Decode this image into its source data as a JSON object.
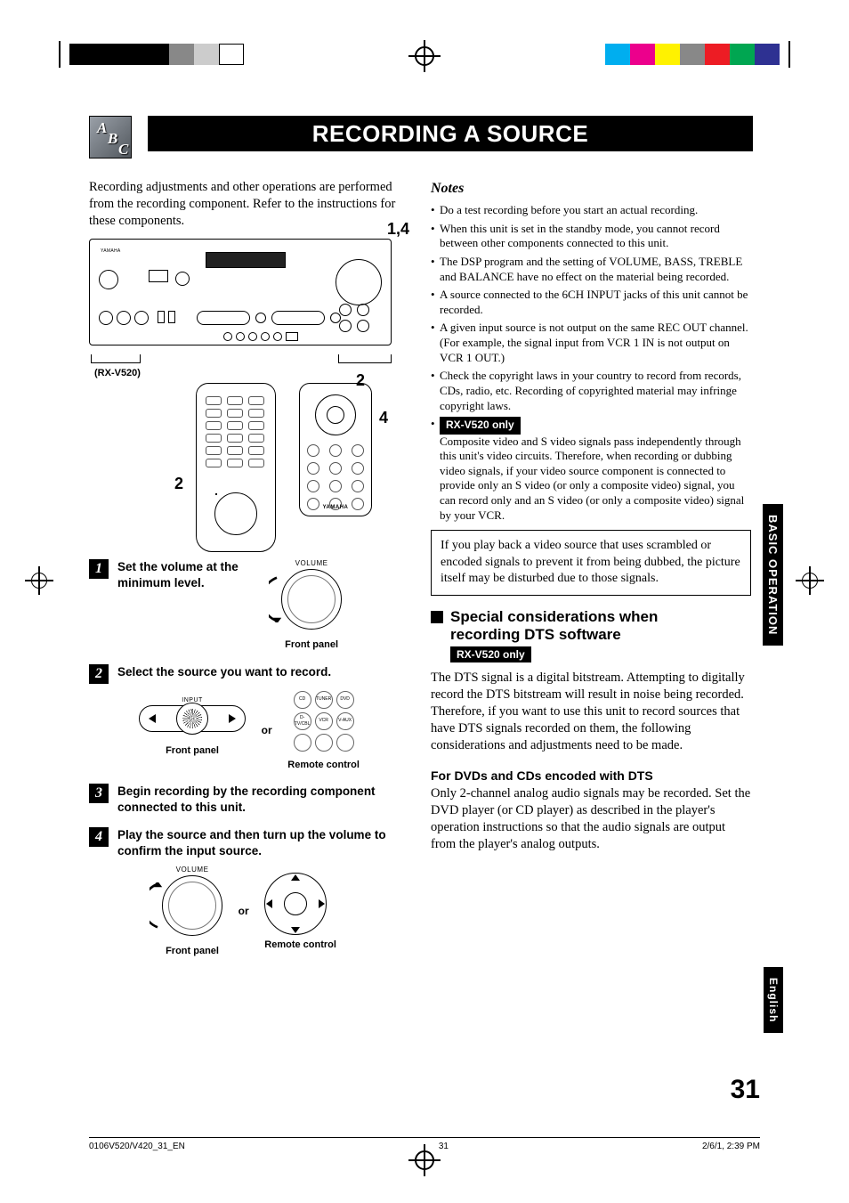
{
  "print_marks": {
    "left_swatches": [
      "#000000",
      "#000000",
      "#000000",
      "#000000",
      "#888888",
      "#cccccc",
      "#ffffff"
    ],
    "right_swatches": [
      "#00aeef",
      "#ec008c",
      "#fff200",
      "#888888",
      "#ed1c24",
      "#00a651",
      "#2e3192"
    ]
  },
  "badge_letters": {
    "a": "A",
    "b": "B",
    "c": "C"
  },
  "title": "RECORDING A SOURCE",
  "intro": "Recording adjustments and other operations are performed from the recording component. Refer to the instructions for these components.",
  "callouts": {
    "top_right": "1,4",
    "mid_right_2": "2",
    "mid_right_4": "4",
    "left_2": "2"
  },
  "model_label": "(RX-V520)",
  "remote_logo": "YAMAHA",
  "steps": {
    "s1": {
      "num": "1",
      "text": "Set the volume at the minimum level."
    },
    "s2": {
      "num": "2",
      "text": "Select the source you want to record."
    },
    "s3": {
      "num": "3",
      "text": "Begin recording by the recording component connected to this unit."
    },
    "s4": {
      "num": "4",
      "text": "Play the source and then turn up the volume to confirm the input source."
    }
  },
  "labels": {
    "volume": "VOLUME",
    "input": "INPUT",
    "front_panel": "Front panel",
    "remote_control": "Remote control",
    "or": "or"
  },
  "source_buttons": [
    "CD",
    "TUNER",
    "DVD",
    "D-TV/CBL",
    "VCR",
    "V-AUX",
    "",
    "",
    ""
  ],
  "notes": {
    "heading": "Notes",
    "items": [
      "Do a test recording before you start an actual recording.",
      "When this unit is set in the standby mode, you cannot record between other components connected to this unit.",
      "The DSP program and the setting of VOLUME, BASS, TREBLE and BALANCE have no effect on the material being recorded.",
      "A source connected to the 6CH INPUT jacks of this unit cannot be recorded.",
      "A given input source is not output on the same REC OUT channel. (For example, the signal input from VCR 1 IN is not output on VCR 1 OUT.)",
      "Check the copyright laws in your country to record from records, CDs, radio, etc. Recording of copyrighted material may infringe copyright laws."
    ],
    "rx_only_badge": "RX-V520 only",
    "rx_only_text": "Composite video and S video signals pass independently through this unit's video circuits. Therefore, when recording or dubbing video signals, if your video source component is connected to provide only an S video (or only a composite video) signal, you can record only and an S video (or only a composite video) signal by your VCR."
  },
  "framed_note": "If you play back a video source that uses scrambled or encoded signals to prevent it from being dubbed, the picture itself may be disturbed due to those signals.",
  "dts": {
    "heading_line1": "Special considerations when",
    "heading_line2": "recording DTS software",
    "badge": "RX-V520 only",
    "para": "The DTS signal is a digital bitstream. Attempting to digitally record the DTS bitstream will result in noise being recorded. Therefore, if you want to use this unit to record sources that have DTS signals recorded on them, the following considerations and adjustments need to be made.",
    "subhead": "For DVDs and CDs encoded with DTS",
    "subpara": "Only 2-channel analog audio signals may be recorded. Set the DVD player (or CD player) as described in the player's operation instructions so that the audio signals are output from the player's analog outputs."
  },
  "side_tabs": {
    "basic": "BASIC OPERATION",
    "english": "English"
  },
  "page_number": "31",
  "footer": {
    "file": "0106V520/V420_31_EN",
    "page": "31",
    "timestamp": "2/6/1, 2:39 PM"
  }
}
